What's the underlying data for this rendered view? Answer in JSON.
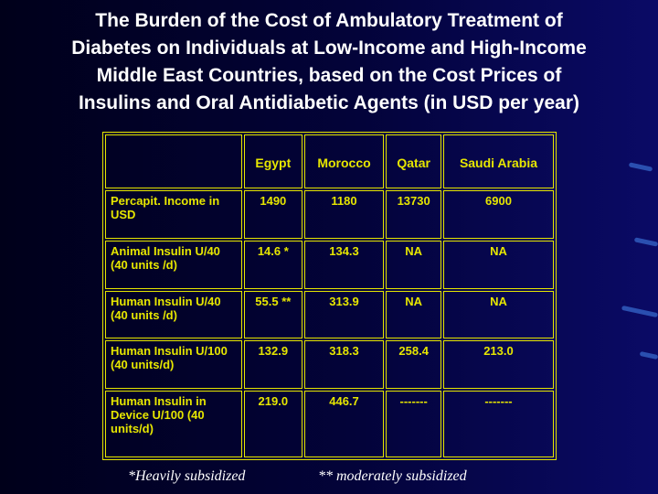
{
  "header": {
    "title_lines": [
      "The Burden of the Cost of Ambulatory Treatment of",
      "Diabetes on Individuals at Low-Income and High-Income",
      "Middle East Countries, based on the Cost Prices of",
      "Insulins and Oral Antidiabetic Agents (in USD per year)"
    ]
  },
  "table": {
    "columns": [
      "Egypt",
      "Morocco",
      "Qatar",
      "Saudi Arabia"
    ],
    "rows": [
      {
        "label": "Percapit. Income in USD",
        "cells": [
          "1490",
          "1180",
          "13730",
          "6900"
        ]
      },
      {
        "label": "Animal Insulin U/40 (40 units /d)",
        "cells": [
          "14.6 *",
          "134.3",
          "NA",
          "NA"
        ]
      },
      {
        "label": "Human Insulin U/40 (40 units /d)",
        "cells": [
          "55.5 **",
          "313.9",
          "NA",
          "NA"
        ]
      },
      {
        "label": "Human Insulin U/100 (40 units/d)",
        "cells": [
          "132.9",
          "318.3",
          "258.4",
          "213.0"
        ]
      },
      {
        "label": "Human Insulin in Device U/100 (40 units/d)",
        "cells": [
          "219.0",
          "446.7",
          "-------",
          "-------"
        ]
      }
    ]
  },
  "footnotes": [
    "*Heavily subsidized",
    "** moderately subsidized"
  ]
}
